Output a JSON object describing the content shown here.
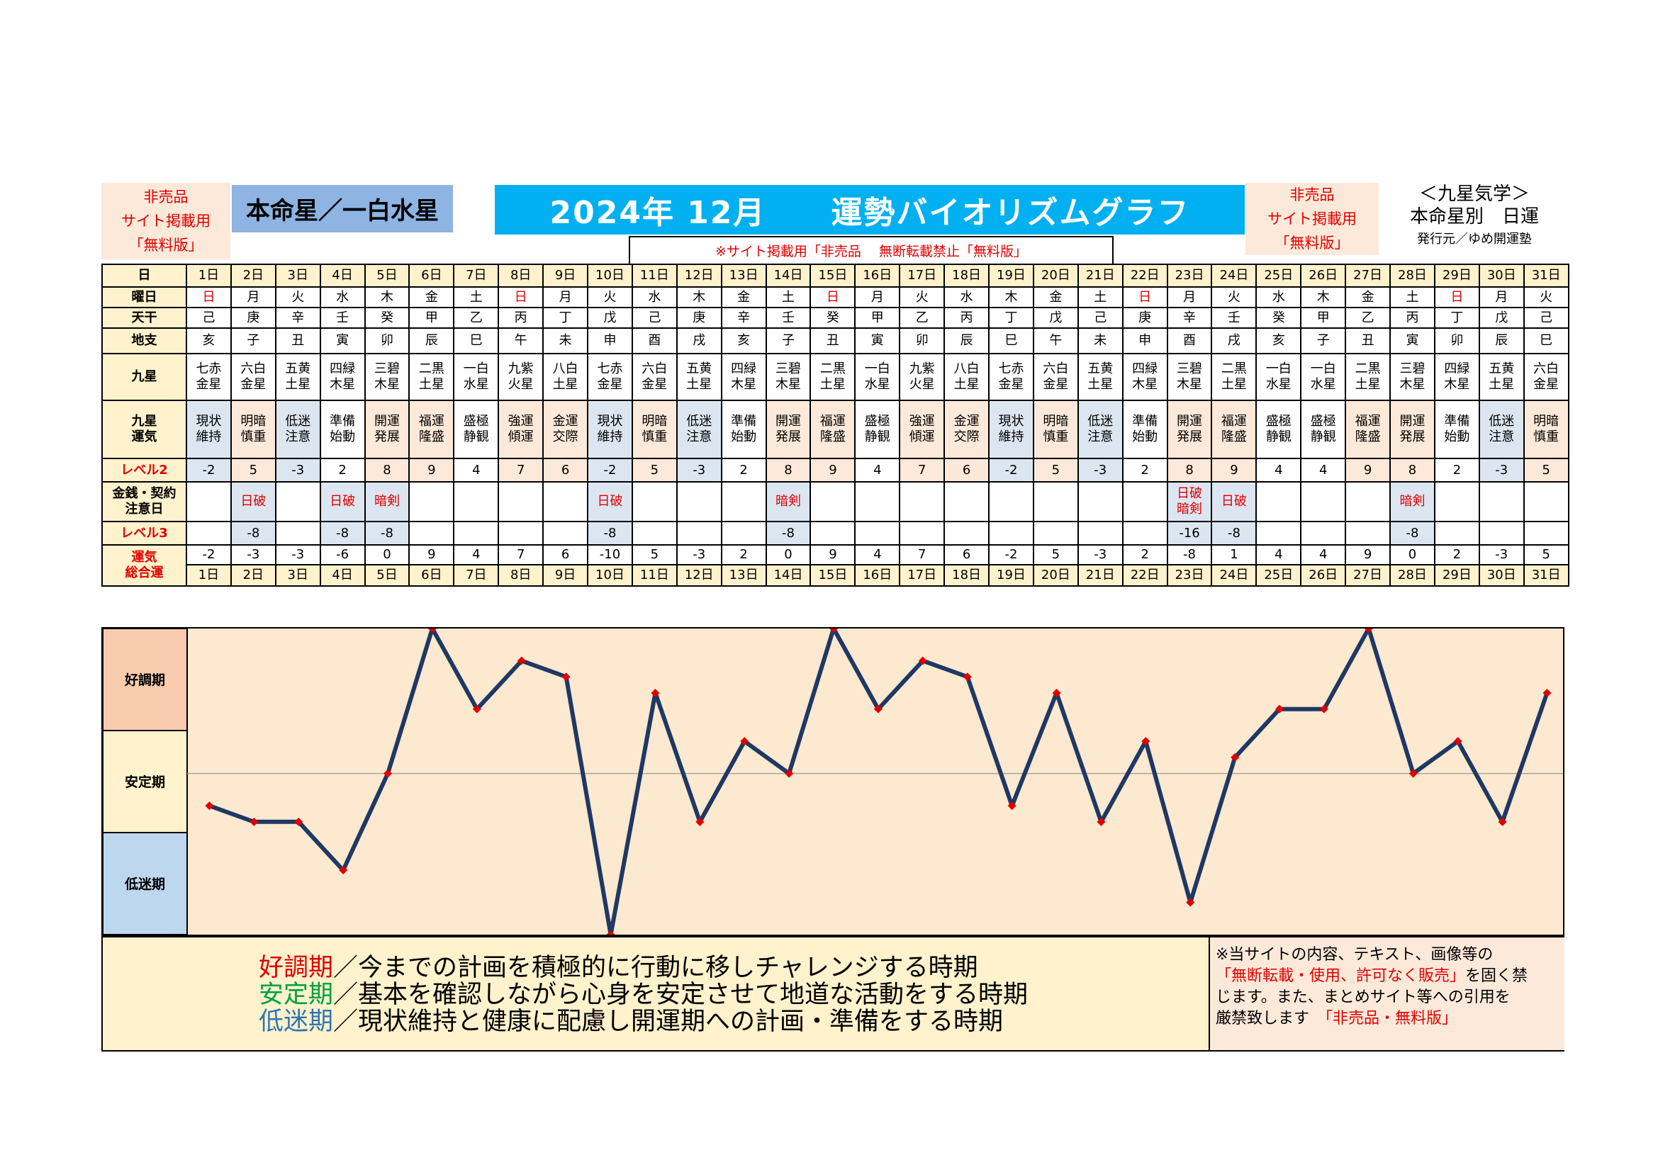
{
  "header": {
    "nonsale_left": [
      "非売品",
      "サイト掲載用",
      "「無料版」"
    ],
    "honmei": "本命星／一白水星",
    "title": "2024年 12月　　運勢バイオリズムグラフ",
    "nonsale_right": [
      "非売品",
      "サイト掲載用",
      "「無料版」"
    ],
    "kyusei_title": "＜九星気学＞",
    "kyusei_sub": "本命星別　日運",
    "publisher": "発行元／ゆめ開運塾",
    "warning": "※サイト掲載用「非売品　 無断転載禁止「無料版」"
  },
  "row_labels": {
    "day": "日",
    "weekday": "曜日",
    "tenkan": "天干",
    "chishi": "地支",
    "kyusei": "九星",
    "unki": [
      "九星",
      "運気"
    ],
    "level2": "レベル2",
    "money": [
      "金銭・契約",
      "注意日"
    ],
    "level3": "レベル3",
    "total": [
      "運気",
      "総合運"
    ]
  },
  "days": [
    "1日",
    "2日",
    "3日",
    "4日",
    "5日",
    "6日",
    "7日",
    "8日",
    "9日",
    "10日",
    "11日",
    "12日",
    "13日",
    "14日",
    "15日",
    "16日",
    "17日",
    "18日",
    "19日",
    "20日",
    "21日",
    "22日",
    "23日",
    "24日",
    "25日",
    "26日",
    "27日",
    "28日",
    "29日",
    "30日",
    "31日"
  ],
  "weekdays": [
    "日",
    "月",
    "火",
    "水",
    "木",
    "金",
    "土",
    "日",
    "月",
    "火",
    "水",
    "木",
    "金",
    "土",
    "日",
    "月",
    "火",
    "水",
    "木",
    "金",
    "土",
    "日",
    "月",
    "火",
    "水",
    "木",
    "金",
    "土",
    "日",
    "月",
    "火"
  ],
  "tenkan": [
    "己",
    "庚",
    "辛",
    "壬",
    "癸",
    "甲",
    "乙",
    "丙",
    "丁",
    "戊",
    "己",
    "庚",
    "辛",
    "壬",
    "癸",
    "甲",
    "乙",
    "丙",
    "丁",
    "戊",
    "己",
    "庚",
    "辛",
    "壬",
    "癸",
    "甲",
    "乙",
    "丙",
    "丁",
    "戊",
    "己"
  ],
  "chishi": [
    "亥",
    "子",
    "丑",
    "寅",
    "卯",
    "辰",
    "巳",
    "午",
    "未",
    "申",
    "酉",
    "戌",
    "亥",
    "子",
    "丑",
    "寅",
    "卯",
    "辰",
    "巳",
    "午",
    "未",
    "申",
    "酉",
    "戌",
    "亥",
    "子",
    "丑",
    "寅",
    "卯",
    "辰",
    "巳"
  ],
  "kyusei": [
    [
      "七赤",
      "金星"
    ],
    [
      "六白",
      "金星"
    ],
    [
      "五黄",
      "土星"
    ],
    [
      "四緑",
      "木星"
    ],
    [
      "三碧",
      "木星"
    ],
    [
      "二黒",
      "土星"
    ],
    [
      "一白",
      "水星"
    ],
    [
      "九紫",
      "火星"
    ],
    [
      "八白",
      "土星"
    ],
    [
      "七赤",
      "金星"
    ],
    [
      "六白",
      "金星"
    ],
    [
      "五黄",
      "土星"
    ],
    [
      "四緑",
      "木星"
    ],
    [
      "三碧",
      "木星"
    ],
    [
      "二黒",
      "土星"
    ],
    [
      "一白",
      "水星"
    ],
    [
      "九紫",
      "火星"
    ],
    [
      "八白",
      "土星"
    ],
    [
      "七赤",
      "金星"
    ],
    [
      "六白",
      "金星"
    ],
    [
      "五黄",
      "土星"
    ],
    [
      "四緑",
      "木星"
    ],
    [
      "三碧",
      "木星"
    ],
    [
      "二黒",
      "土星"
    ],
    [
      "一白",
      "水星"
    ],
    [
      "一白",
      "水星"
    ],
    [
      "二黒",
      "土星"
    ],
    [
      "三碧",
      "木星"
    ],
    [
      "四緑",
      "木星"
    ],
    [
      "五黄",
      "土星"
    ],
    [
      "六白",
      "金星"
    ]
  ],
  "unki": [
    [
      "現状",
      "維持"
    ],
    [
      "明暗",
      "慎重"
    ],
    [
      "低迷",
      "注意"
    ],
    [
      "準備",
      "始動"
    ],
    [
      "開運",
      "発展"
    ],
    [
      "福運",
      "隆盛"
    ],
    [
      "盛極",
      "静観"
    ],
    [
      "強運",
      "傾運"
    ],
    [
      "金運",
      "交際"
    ],
    [
      "現状",
      "維持"
    ],
    [
      "明暗",
      "慎重"
    ],
    [
      "低迷",
      "注意"
    ],
    [
      "準備",
      "始動"
    ],
    [
      "開運",
      "発展"
    ],
    [
      "福運",
      "隆盛"
    ],
    [
      "盛極",
      "静観"
    ],
    [
      "強運",
      "傾運"
    ],
    [
      "金運",
      "交際"
    ],
    [
      "現状",
      "維持"
    ],
    [
      "明暗",
      "慎重"
    ],
    [
      "低迷",
      "注意"
    ],
    [
      "準備",
      "始動"
    ],
    [
      "開運",
      "発展"
    ],
    [
      "福運",
      "隆盛"
    ],
    [
      "盛極",
      "静観"
    ],
    [
      "盛極",
      "静観"
    ],
    [
      "福運",
      "隆盛"
    ],
    [
      "開運",
      "発展"
    ],
    [
      "準備",
      "始動"
    ],
    [
      "低迷",
      "注意"
    ],
    [
      "明暗",
      "慎重"
    ]
  ],
  "level2": [
    "-2",
    "5",
    "-3",
    "2",
    "8",
    "9",
    "4",
    "7",
    "6",
    "-2",
    "5",
    "-3",
    "2",
    "8",
    "9",
    "4",
    "7",
    "6",
    "-2",
    "5",
    "-3",
    "2",
    "8",
    "9",
    "4",
    "4",
    "9",
    "8",
    "2",
    "-3",
    "5"
  ],
  "money": [
    [],
    [
      "日破"
    ],
    [],
    [
      "日破"
    ],
    [
      "暗剣"
    ],
    [],
    [],
    [],
    [],
    [
      "日破"
    ],
    [],
    [],
    [],
    [
      "暗剣"
    ],
    [],
    [],
    [],
    [],
    [],
    [],
    [],
    [],
    [
      "日破",
      "暗剣"
    ],
    [
      "日破"
    ],
    [],
    [],
    [],
    [
      "暗剣"
    ],
    [],
    [],
    []
  ],
  "level3": [
    "",
    "-8",
    "",
    "-8",
    "-8",
    "",
    "",
    "",
    "",
    "-8",
    "",
    "",
    "",
    "-8",
    "",
    "",
    "",
    "",
    "",
    "",
    "",
    "",
    "-16",
    "-8",
    "",
    "",
    "",
    "-8",
    "",
    "",
    ""
  ],
  "total": [
    "-2",
    "-3",
    "-3",
    "-6",
    "0",
    "9",
    "4",
    "7",
    "6",
    "-10",
    "5",
    "-3",
    "2",
    "0",
    "9",
    "4",
    "7",
    "6",
    "-2",
    "5",
    "-3",
    "2",
    "-8",
    "1",
    "4",
    "4",
    "9",
    "0",
    "2",
    "-3",
    "5"
  ],
  "zones": [
    "好調期",
    "安定期",
    "低迷期"
  ],
  "chart_data": {
    "type": "line",
    "x": [
      "1日",
      "2日",
      "3日",
      "4日",
      "5日",
      "6日",
      "7日",
      "8日",
      "9日",
      "10日",
      "11日",
      "12日",
      "13日",
      "14日",
      "15日",
      "16日",
      "17日",
      "18日",
      "19日",
      "20日",
      "21日",
      "22日",
      "23日",
      "24日",
      "25日",
      "26日",
      "27日",
      "28日",
      "29日",
      "30日",
      "31日"
    ],
    "values": [
      -2,
      -3,
      -3,
      -6,
      0,
      9,
      4,
      7,
      6,
      -10,
      5,
      -3,
      2,
      0,
      9,
      4,
      7,
      6,
      -2,
      5,
      -3,
      2,
      -8,
      1,
      4,
      4,
      9,
      0,
      2,
      -3,
      5
    ],
    "ylim": [
      -10,
      9
    ],
    "line_color": "#1f3864",
    "marker_color": "#e00000",
    "background": "#fde9cf"
  },
  "legend": [
    {
      "term": "好調期",
      "text": "／今までの計画を積極的に行動に移しチャレンジする時期",
      "color": "#e00000"
    },
    {
      "term": "安定期",
      "text": "／基本を確認しながら心身を安定させて地道な活動をする時期",
      "color": "#00a040"
    },
    {
      "term": "低迷期",
      "text": "／現状維持と健康に配慮し開運期への計画・準備をする時期",
      "color": "#2e75b6"
    }
  ],
  "notice": {
    "line1": "※当サイトの内容、テキスト、画像等の",
    "line2_red": "「無断転載・使用、許可なく販売」",
    "line2_rest": "を固く禁",
    "line3": "じます。また、まとめサイト等への引用を",
    "line4": "厳禁致します",
    "line4_red": "「非売品・無料版」"
  },
  "colors": {
    "good_zone": "#f8cbad",
    "stable_zone": "#fff2cc",
    "low_zone": "#bdd7ee"
  }
}
